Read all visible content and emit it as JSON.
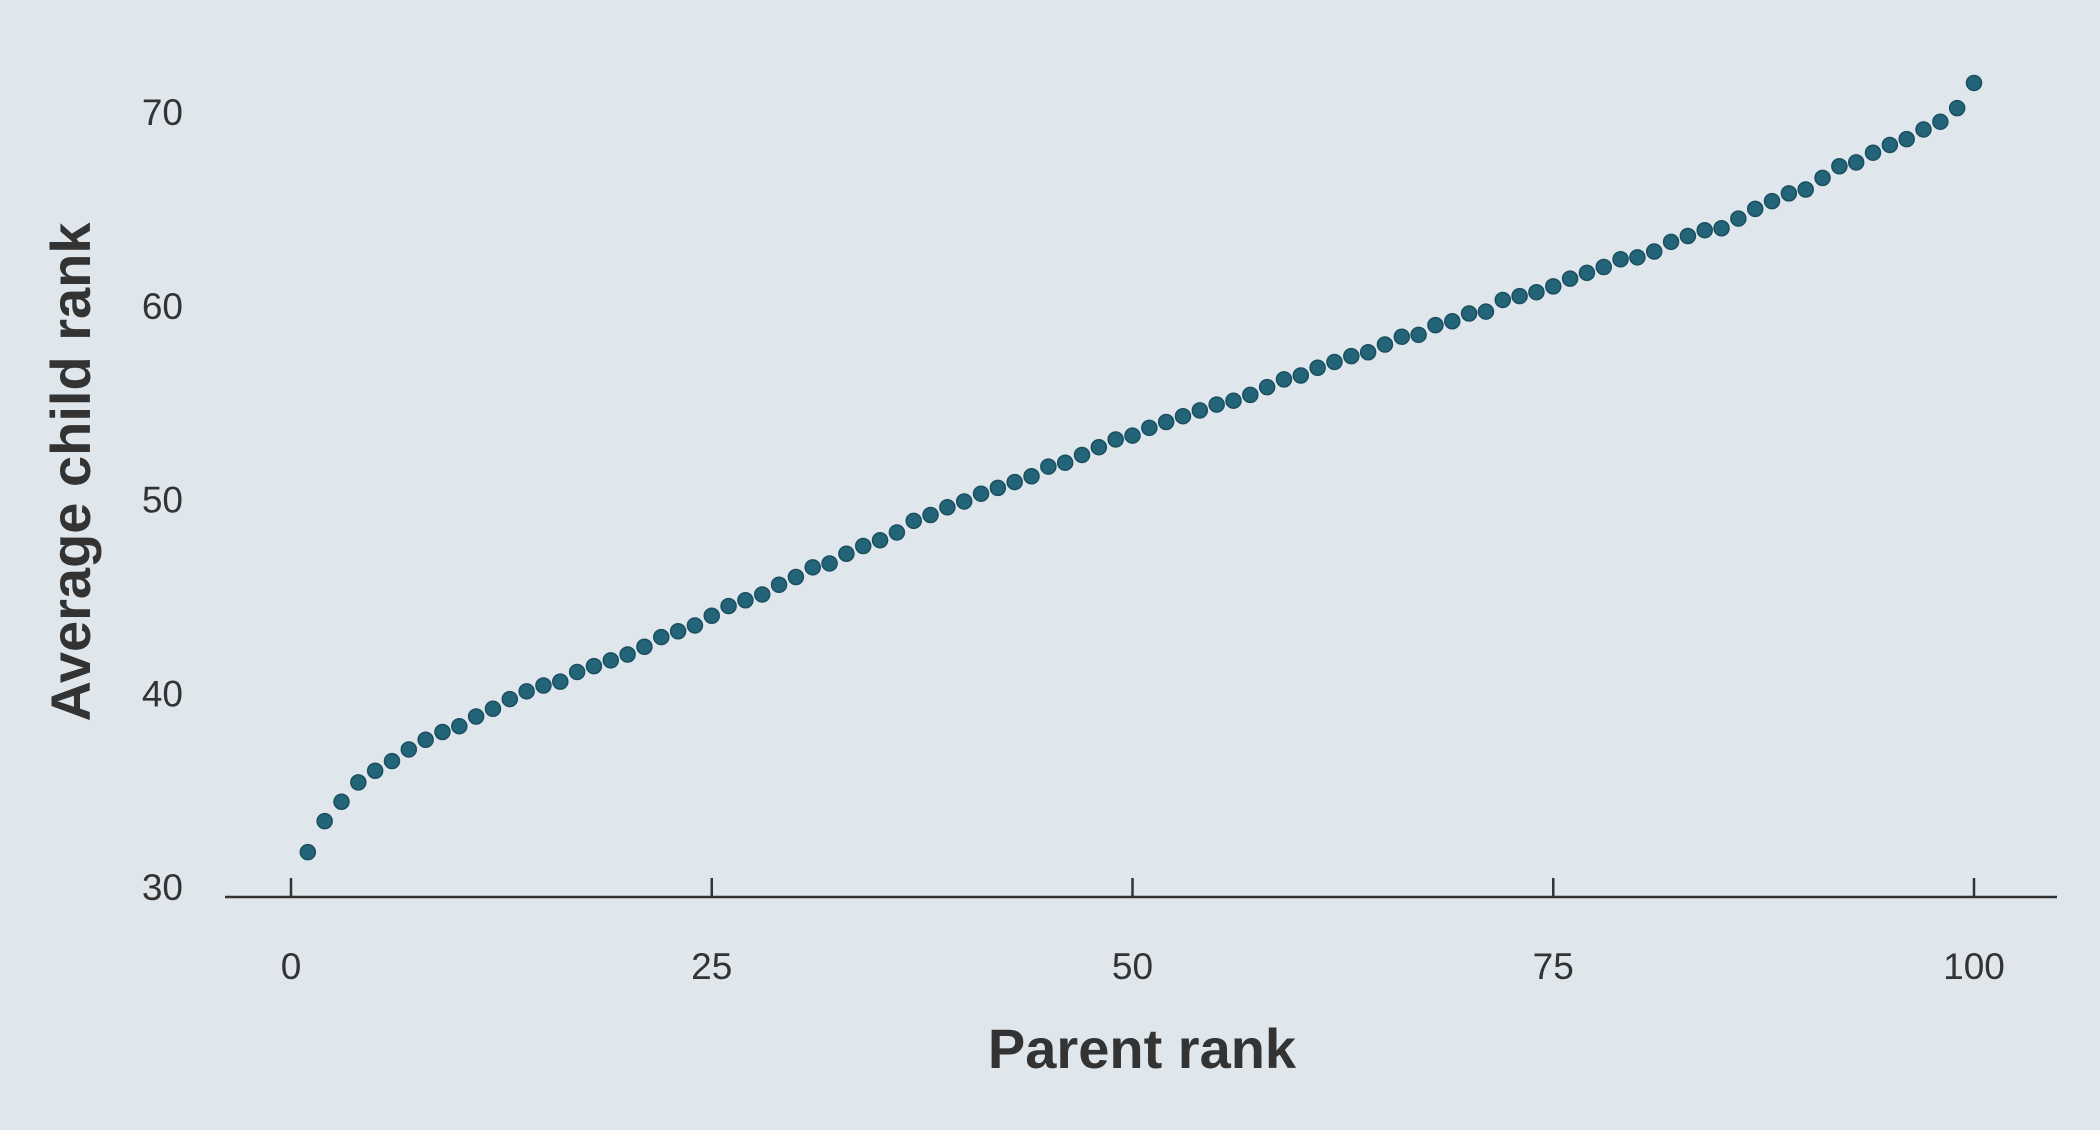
{
  "colors": {
    "background": "#dfe6ec",
    "point": "#236478",
    "point_stroke": "#1a4f60",
    "axis": "#333333",
    "text": "#333333"
  },
  "chart_data": {
    "type": "scatter",
    "title": "",
    "xlabel": "Parent rank",
    "ylabel": "Average child rank",
    "xlim": [
      0,
      100
    ],
    "ylim": [
      30,
      70
    ],
    "xticks": [
      0,
      25,
      50,
      75,
      100
    ],
    "yticks": [
      30,
      40,
      50,
      60,
      70
    ],
    "grid": false,
    "legend": "none",
    "x": [
      1,
      2,
      3,
      4,
      5,
      6,
      7,
      8,
      9,
      10,
      11,
      12,
      13,
      14,
      15,
      16,
      17,
      18,
      19,
      20,
      21,
      22,
      23,
      24,
      25,
      26,
      27,
      28,
      29,
      30,
      31,
      32,
      33,
      34,
      35,
      36,
      37,
      38,
      39,
      40,
      41,
      42,
      43,
      44,
      45,
      46,
      47,
      48,
      49,
      50,
      51,
      52,
      53,
      54,
      55,
      56,
      57,
      58,
      59,
      60,
      61,
      62,
      63,
      64,
      65,
      66,
      67,
      68,
      69,
      70,
      71,
      72,
      73,
      74,
      75,
      76,
      77,
      78,
      79,
      80,
      81,
      82,
      83,
      84,
      85,
      86,
      87,
      88,
      89,
      90,
      91,
      92,
      93,
      94,
      95,
      96,
      97,
      98,
      99,
      100
    ],
    "y": [
      31.8,
      33.4,
      34.4,
      35.4,
      36.0,
      36.5,
      37.1,
      37.6,
      38.0,
      38.3,
      38.8,
      39.2,
      39.7,
      40.1,
      40.4,
      40.6,
      41.1,
      41.4,
      41.7,
      42.0,
      42.4,
      42.9,
      43.2,
      43.5,
      44.0,
      44.5,
      44.8,
      45.1,
      45.6,
      46.0,
      46.5,
      46.7,
      47.2,
      47.6,
      47.9,
      48.3,
      48.9,
      49.2,
      49.6,
      49.9,
      50.3,
      50.6,
      50.9,
      51.2,
      51.7,
      51.9,
      52.3,
      52.7,
      53.1,
      53.3,
      53.7,
      54.0,
      54.3,
      54.6,
      54.9,
      55.1,
      55.4,
      55.8,
      56.2,
      56.4,
      56.8,
      57.1,
      57.4,
      57.6,
      58.0,
      58.4,
      58.5,
      59.0,
      59.2,
      59.6,
      59.7,
      60.3,
      60.5,
      60.7,
      61.0,
      61.4,
      61.7,
      62.0,
      62.4,
      62.5,
      62.8,
      63.3,
      63.6,
      63.9,
      64.0,
      64.5,
      65.0,
      65.4,
      65.8,
      66.0,
      66.6,
      67.2,
      67.4,
      67.9,
      68.3,
      68.6,
      69.1,
      69.5,
      70.2,
      71.5
    ]
  }
}
